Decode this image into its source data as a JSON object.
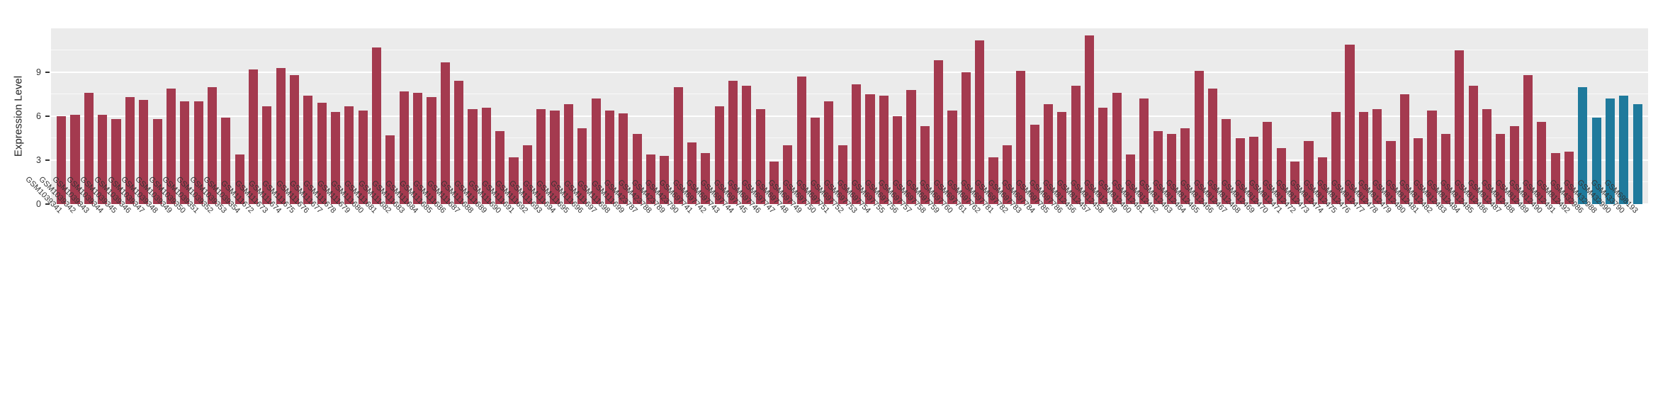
{
  "chart_data": {
    "type": "bar",
    "title": "",
    "xlabel": "",
    "ylabel": "Expression Level",
    "ylim": [
      0,
      12
    ],
    "yticks": [
      0,
      3,
      6,
      9
    ],
    "grid": true,
    "legend": "none",
    "plot_bg": "#EBEBEB",
    "categories": [
      "GSM1039341",
      "GSM1039342",
      "GSM1039343",
      "GSM1039344",
      "GSM1039345",
      "GSM1039346",
      "GSM1039347",
      "GSM1039348",
      "GSM1039349",
      "GSM1039350",
      "GSM1039351",
      "GSM1039352",
      "GSM1039353",
      "GSM1039354",
      "GSM111672",
      "GSM111673",
      "GSM111674",
      "GSM111675",
      "GSM111676",
      "GSM111677",
      "GSM111678",
      "GSM111679",
      "GSM111680",
      "GSM111681",
      "GSM111682",
      "GSM111683",
      "GSM111684",
      "GSM111685",
      "GSM111686",
      "GSM111687",
      "GSM111688",
      "GSM111689",
      "GSM111690",
      "GSM111691",
      "GSM111692",
      "GSM111693",
      "GSM111694",
      "GSM111695",
      "GSM111696",
      "GSM111697",
      "GSM111698",
      "GSM111699",
      "GSM423787",
      "GSM423788",
      "GSM423789",
      "GSM423790",
      "GSM697741",
      "GSM697742",
      "GSM697743",
      "GSM697744",
      "GSM697745",
      "GSM697746",
      "GSM697747",
      "GSM697748",
      "GSM697749",
      "GSM697750",
      "GSM697751",
      "GSM697752",
      "GSM697753",
      "GSM697754",
      "GSM697755",
      "GSM697756",
      "GSM697757",
      "GSM697758",
      "GSM697759",
      "GSM697760",
      "GSM697761",
      "GSM697762",
      "GSM697781",
      "GSM697782",
      "GSM697783",
      "GSM697784",
      "GSM697785",
      "GSM697786",
      "GSM812456",
      "GSM812457",
      "GSM812458",
      "GSM812459",
      "GSM812460",
      "GSM812461",
      "GSM812462",
      "GSM812463",
      "GSM812464",
      "GSM812465",
      "GSM812466",
      "GSM812467",
      "GSM812468",
      "GSM812469",
      "GSM812470",
      "GSM812471",
      "GSM812472",
      "GSM812473",
      "GSM812474",
      "GSM812475",
      "GSM812476",
      "GSM812477",
      "GSM812478",
      "GSM812479",
      "GSM812480",
      "GSM812481",
      "GSM812482",
      "GSM812483",
      "GSM812484",
      "GSM812485",
      "GSM812486",
      "GSM812487",
      "GSM812488",
      "GSM812489",
      "GSM812490",
      "GSM812491",
      "GSM812492",
      "GSM432986",
      "GSM432988",
      "GSM432990",
      "GSM433790",
      "GSM698193"
    ],
    "values": [
      6.0,
      6.1,
      7.6,
      6.1,
      5.8,
      7.3,
      7.1,
      5.8,
      7.9,
      7.0,
      7.0,
      8.0,
      5.9,
      3.4,
      9.2,
      6.7,
      9.3,
      8.8,
      7.4,
      6.9,
      6.3,
      6.7,
      6.4,
      10.7,
      4.7,
      7.7,
      7.6,
      7.3,
      9.7,
      8.4,
      6.5,
      6.6,
      5.0,
      3.2,
      4.0,
      6.5,
      6.4,
      6.8,
      5.2,
      7.2,
      6.4,
      6.2,
      4.8,
      3.4,
      3.3,
      8.0,
      4.2,
      3.5,
      6.7,
      8.4,
      8.1,
      6.5,
      2.9,
      4.0,
      8.7,
      5.9,
      7.0,
      4.0,
      8.2,
      7.5,
      7.4,
      6.0,
      7.8,
      5.3,
      9.8,
      6.4,
      9.0,
      11.2,
      3.2,
      4.0,
      9.1,
      5.4,
      6.8,
      6.3,
      8.1,
      11.5,
      6.6,
      7.6,
      3.4,
      7.2,
      5.0,
      4.8,
      5.2,
      9.1,
      7.9,
      5.8,
      4.5,
      4.6,
      5.6,
      3.8,
      2.9,
      4.3,
      3.2,
      6.3,
      10.9,
      6.3,
      6.5,
      4.3,
      7.5,
      4.5,
      6.4,
      4.8,
      10.5,
      8.1,
      6.5,
      4.8,
      5.3,
      8.8,
      5.6,
      3.5,
      3.6,
      8.0,
      5.9,
      7.2,
      7.4,
      6.8
    ],
    "bar_groups": [
      {
        "name": "group-1",
        "color": "#A43A4F",
        "start": 0,
        "end": 110
      },
      {
        "name": "group-2",
        "color": "#1F7A9C",
        "start": 111,
        "end": 115
      }
    ]
  }
}
